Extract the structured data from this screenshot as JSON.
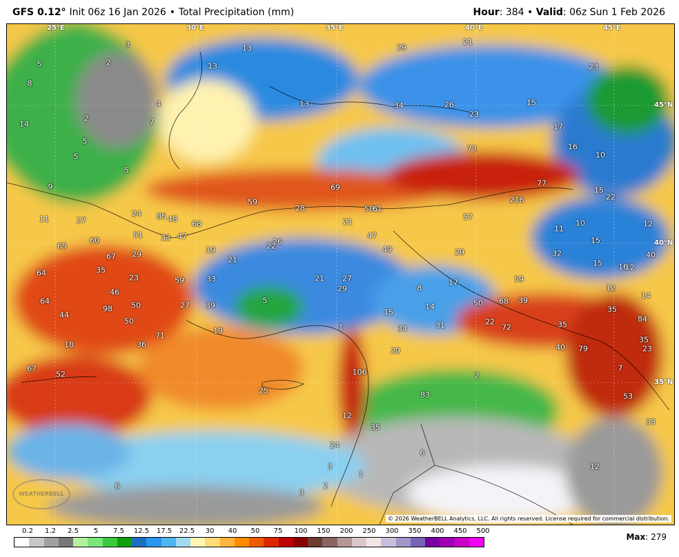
{
  "header": {
    "model": "GFS 0.12°",
    "init": "Init 06z 16 Jan 2026",
    "separator": "•",
    "product": "Total Precipitation (mm)",
    "hour_label": "Hour",
    "hour_value": ": 384",
    "valid_label": "Valid",
    "valid_value": ": 06z Sun 1 Feb 2026"
  },
  "coords": {
    "lon_25": "25°E",
    "lon_30": "30°E",
    "lon_35": "35°E",
    "lon_40": "40°E",
    "lon_45": "45°E",
    "lat_45": "45°N",
    "lat_40": "40°N",
    "lat_35": "35°N"
  },
  "values": [
    "5",
    "2",
    "3",
    "8",
    "4",
    "2",
    "7",
    "14",
    "5",
    "5",
    "5",
    "9",
    "11",
    "27",
    "24",
    "85",
    "48",
    "68",
    "51",
    "33",
    "47",
    "65",
    "60",
    "67",
    "29",
    "64",
    "35",
    "23",
    "46",
    "64",
    "44",
    "98",
    "50",
    "50",
    "18",
    "52",
    "67",
    "36",
    "71",
    "59",
    "33",
    "19",
    "27",
    "39",
    "19",
    "22",
    "26",
    "21",
    "28",
    "59",
    "69",
    "21",
    "5",
    "21",
    "29",
    "27",
    "58",
    "61",
    "47",
    "49",
    "57",
    "13",
    "13",
    "13",
    "29",
    "21",
    "34",
    "26",
    "23",
    "15",
    "17",
    "16",
    "10",
    "23",
    "73",
    "77",
    "216",
    "15",
    "22",
    "12",
    "11",
    "10",
    "15",
    "12",
    "40",
    "32",
    "15",
    "16",
    "12",
    "29",
    "59",
    "17",
    "8",
    "14",
    "15",
    "31",
    "34",
    "29",
    "50",
    "68",
    "39",
    "22",
    "72",
    "35",
    "40",
    "79",
    "23",
    "35",
    "14",
    "84",
    "7",
    "2",
    "83",
    "106",
    "12",
    "35",
    "24",
    "3",
    "1",
    "6",
    "12",
    "2",
    "3",
    "6",
    "33",
    "53",
    "25",
    "1",
    "35"
  ],
  "copyright": "© 2026 WeatherBELL Analytics, LLC. All rights reserved. License required for commercial distribution.",
  "logo_text": "WEATHERBELL",
  "scale": {
    "labels": [
      "0.2",
      "1.2",
      "2.5",
      "5",
      "7.5",
      "12.5",
      "17.5",
      "22.5",
      "30",
      "40",
      "50",
      "75",
      "100",
      "150",
      "200",
      "250",
      "300",
      "350",
      "400",
      "450",
      "500"
    ],
    "colors": [
      "#ffffff",
      "#c8c8c8",
      "#a0a0a0",
      "#787878",
      "#b4f0a0",
      "#78e678",
      "#3cc83c",
      "#10a010",
      "#1e6ebe",
      "#2896f0",
      "#50b4f0",
      "#a0dcf0",
      "#fff8b4",
      "#ffdc78",
      "#ffb43c",
      "#ff8c00",
      "#f05a00",
      "#dc2800",
      "#c00000",
      "#8c0000",
      "#6e3c32",
      "#8c6464",
      "#b49696",
      "#dcc8c8",
      "#f0e6e6",
      "#c8bedc",
      "#a096c8",
      "#7864b4",
      "#7800a0",
      "#a000b4",
      "#c800c8",
      "#f000f0"
    ]
  },
  "max_label": "Max",
  "max_value": ": 279"
}
